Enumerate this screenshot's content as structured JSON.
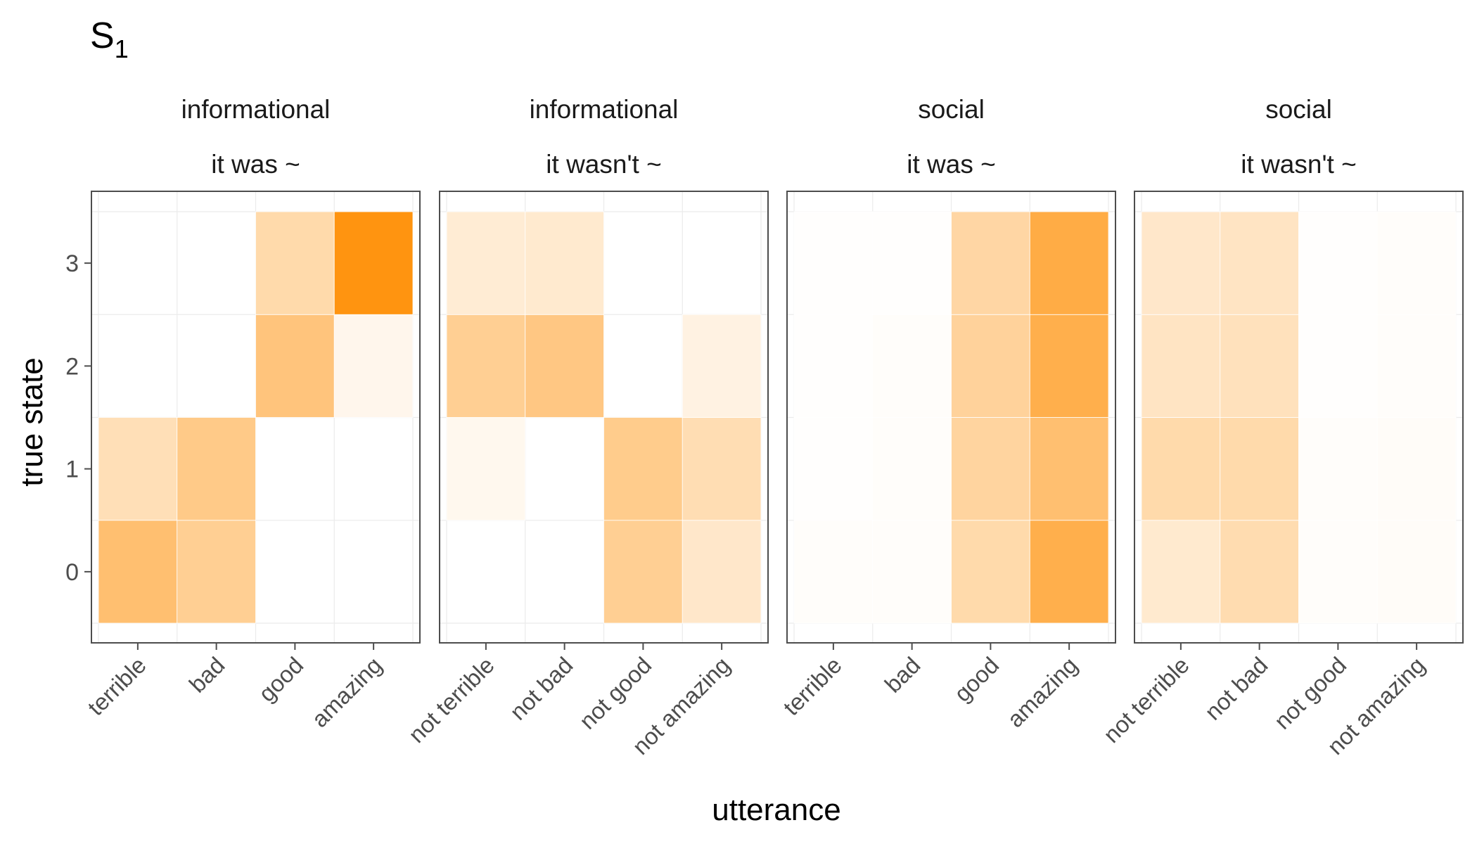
{
  "chart_data": {
    "type": "heatmap",
    "title": "S",
    "title_subscript": "1",
    "xlabel": "utterance",
    "ylabel": "true state",
    "y_ticks": [
      "0",
      "1",
      "2",
      "3"
    ],
    "color_low": "#ffffff",
    "color_high": "#ff9410",
    "grid": true,
    "legend": "none",
    "value_note": "cell values are estimated relative color intensity (0 = white, 1 = darkest orange)",
    "panels": [
      {
        "strip1": "informational",
        "strip2": "it was ~",
        "categories": [
          "terrible",
          "bad",
          "good",
          "amazing"
        ],
        "values_by_state": {
          "0": [
            0.6,
            0.45,
            0.0,
            0.0
          ],
          "1": [
            0.3,
            0.5,
            0.0,
            0.0
          ],
          "2": [
            0.0,
            0.0,
            0.55,
            0.08
          ],
          "3": [
            0.0,
            0.0,
            0.35,
            1.0
          ]
        }
      },
      {
        "strip1": "informational",
        "strip2": "it wasn't ~",
        "categories": [
          "not terrible",
          "not bad",
          "not good",
          "not amazing"
        ],
        "values_by_state": {
          "0": [
            0.0,
            0.0,
            0.45,
            0.22
          ],
          "1": [
            0.07,
            0.0,
            0.48,
            0.32
          ],
          "2": [
            0.45,
            0.52,
            0.0,
            0.12
          ],
          "3": [
            0.18,
            0.2,
            0.0,
            0.0
          ]
        }
      },
      {
        "strip1": "social",
        "strip2": "it was ~",
        "categories": [
          "terrible",
          "bad",
          "good",
          "amazing"
        ],
        "values_by_state": {
          "0": [
            0.02,
            0.02,
            0.35,
            0.75
          ],
          "1": [
            0.01,
            0.02,
            0.4,
            0.6
          ],
          "2": [
            0.01,
            0.02,
            0.42,
            0.75
          ],
          "3": [
            0.01,
            0.01,
            0.38,
            0.78
          ]
        }
      },
      {
        "strip1": "social",
        "strip2": "it wasn't ~",
        "categories": [
          "not terrible",
          "not bad",
          "not good",
          "not amazing"
        ],
        "values_by_state": {
          "0": [
            0.2,
            0.33,
            0.02,
            0.03
          ],
          "1": [
            0.35,
            0.35,
            0.02,
            0.03
          ],
          "2": [
            0.25,
            0.28,
            0.01,
            0.02
          ],
          "3": [
            0.22,
            0.25,
            0.01,
            0.02
          ]
        }
      }
    ]
  }
}
